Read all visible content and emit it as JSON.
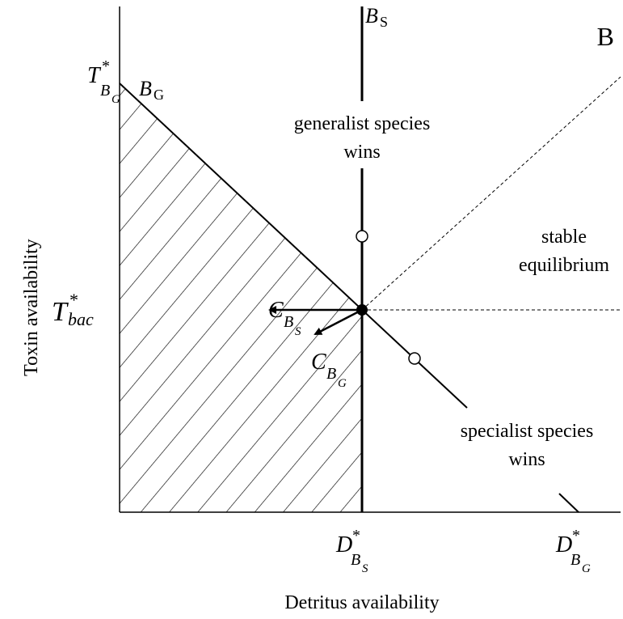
{
  "panel_label": "B",
  "x_axis_label": "Detritus availability",
  "y_axis_label": "Toxin availability",
  "isoclines": {
    "specialist": {
      "base": "B",
      "sub": "S"
    },
    "generalist": {
      "base": "B",
      "sub": "G"
    }
  },
  "regions": {
    "generalist_wins": [
      "generalist species",
      "wins"
    ],
    "stable": [
      "stable",
      "equilibrium"
    ],
    "specialist_wins": [
      "specialist species",
      "wins"
    ]
  },
  "y_ticks": {
    "t_bg": {
      "base": "T",
      "sup": "*",
      "sub": "B",
      "sub2": "G"
    },
    "t_bac": {
      "base": "T",
      "sup": "*",
      "sub": "bac"
    }
  },
  "x_ticks": {
    "d_bs": {
      "base": "D",
      "sup": "*",
      "sub": "B",
      "sub2": "S"
    },
    "d_bg": {
      "base": "D",
      "sup": "*",
      "sub": "B",
      "sub2": "G"
    }
  },
  "vectors": {
    "c_bs": {
      "base": "C",
      "sub": "B",
      "sub2": "S"
    },
    "c_bg": {
      "base": "C",
      "sub": "B",
      "sub2": "G"
    }
  }
}
